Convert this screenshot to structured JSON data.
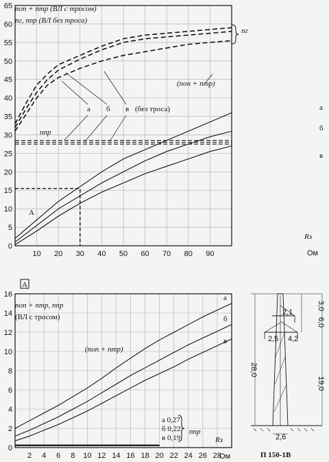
{
  "chart_data": [
    {
      "type": "line",
      "title_lines": [
        "nоп + nтр (ВЛ с тросом)",
        "nг, nпр (ВЛ без троса)"
      ],
      "xlabel": "Rз",
      "x_unit": "Ом",
      "xlim": [
        0,
        100
      ],
      "ylim": [
        0,
        65
      ],
      "x_ticks": [
        10,
        20,
        30,
        40,
        50,
        60,
        70,
        80,
        90
      ],
      "y_ticks": [
        0,
        5,
        10,
        15,
        20,
        25,
        30,
        35,
        40,
        45,
        50,
        55,
        60,
        65
      ],
      "grid": true,
      "annotations": {
        "ng": "nг",
        "sum": "(nоп + nтр)",
        "npr": "nпр",
        "no_cable": "(без троса)",
        "point_A": "A",
        "letters": [
          "а",
          "б",
          "в"
        ]
      },
      "marker_A": {
        "x": 30,
        "y": 15.5
      },
      "series": [
        {
          "name": "а",
          "group": "ng",
          "style": "dashed",
          "x": [
            0,
            5,
            10,
            15,
            20,
            30,
            40,
            50,
            60,
            70,
            80,
            90,
            100
          ],
          "y": [
            33,
            38.5,
            43.5,
            46.5,
            49,
            51.5,
            54,
            56,
            57,
            57.5,
            58,
            58.5,
            59
          ]
        },
        {
          "name": "б",
          "group": "ng",
          "style": "dashed",
          "x": [
            0,
            5,
            10,
            15,
            20,
            30,
            40,
            50,
            60,
            70,
            80,
            90,
            100
          ],
          "y": [
            32,
            37,
            41.5,
            45,
            47.5,
            50.5,
            53,
            55,
            56,
            56.5,
            57,
            57.5,
            58
          ]
        },
        {
          "name": "в",
          "group": "ng",
          "style": "dashed",
          "x": [
            0,
            5,
            10,
            15,
            20,
            30,
            40,
            50,
            60,
            70,
            80,
            90,
            100
          ],
          "y": [
            31,
            35.5,
            40,
            43.5,
            45.5,
            48,
            50,
            51.5,
            52.5,
            53.5,
            54.5,
            55,
            55.5
          ]
        },
        {
          "name": "а",
          "group": "npr",
          "style": "dashed",
          "x": [
            0,
            100
          ],
          "y": [
            28.5,
            28.5
          ]
        },
        {
          "name": "б",
          "group": "npr",
          "style": "dashed",
          "x": [
            0,
            100
          ],
          "y": [
            28,
            28
          ]
        },
        {
          "name": "в",
          "group": "npr",
          "style": "dashed",
          "x": [
            0,
            100
          ],
          "y": [
            27.5,
            27.5
          ]
        },
        {
          "name": "а",
          "group": "sum",
          "style": "solid",
          "x": [
            0,
            10,
            20,
            30,
            40,
            50,
            60,
            70,
            80,
            90,
            100
          ],
          "y": [
            2,
            7,
            12,
            16,
            20,
            23.5,
            26,
            28.5,
            31,
            33.5,
            36
          ]
        },
        {
          "name": "б",
          "group": "sum",
          "style": "solid",
          "x": [
            0,
            10,
            20,
            30,
            40,
            50,
            60,
            70,
            80,
            90,
            100
          ],
          "y": [
            1,
            5.5,
            10,
            13.5,
            17,
            20,
            23,
            25.5,
            27.5,
            29.5,
            31
          ]
        },
        {
          "name": "в",
          "group": "sum",
          "style": "solid",
          "x": [
            0,
            10,
            20,
            30,
            40,
            50,
            60,
            70,
            80,
            90,
            100
          ],
          "y": [
            0.3,
            4,
            8,
            11.5,
            14.5,
            17,
            19.5,
            21.5,
            23.5,
            25.5,
            27
          ]
        }
      ]
    },
    {
      "type": "line",
      "panel_label": "A",
      "title_lines": [
        "nоп + nтр, nпр",
        "(ВЛ с тросом)"
      ],
      "xlabel": "Rз",
      "x_unit": "Ом",
      "xlim": [
        0,
        30
      ],
      "ylim": [
        0,
        16
      ],
      "x_ticks": [
        2,
        4,
        6,
        8,
        10,
        12,
        14,
        16,
        18,
        20,
        22,
        24,
        26,
        28
      ],
      "y_ticks": [
        0,
        2,
        4,
        6,
        8,
        10,
        12,
        14,
        16
      ],
      "grid": true,
      "annotations": {
        "sum": "(nоп + nтр)",
        "npr": "nпр",
        "npr_values": [
          "а 0,27",
          "б 0,22",
          "в 0,19"
        ],
        "letters": [
          "а",
          "б",
          "в"
        ]
      },
      "series": [
        {
          "name": "а",
          "group": "sum",
          "style": "solid",
          "x": [
            0,
            2,
            4,
            6,
            8,
            10,
            12,
            14,
            16,
            18,
            20,
            22,
            24,
            26,
            28,
            30
          ],
          "y": [
            2,
            2.8,
            3.6,
            4.4,
            5.3,
            6.2,
            7.2,
            8.3,
            9.3,
            10.3,
            11.2,
            12,
            12.8,
            13.6,
            14.3,
            15
          ]
        },
        {
          "name": "б",
          "group": "sum",
          "style": "solid",
          "x": [
            0,
            2,
            4,
            6,
            8,
            10,
            12,
            14,
            16,
            18,
            20,
            22,
            24,
            26,
            28,
            30
          ],
          "y": [
            1.2,
            1.8,
            2.5,
            3.2,
            4,
            4.8,
            5.7,
            6.6,
            7.5,
            8.3,
            9.1,
            9.9,
            10.7,
            11.4,
            12.1,
            12.8
          ]
        },
        {
          "name": "в",
          "group": "sum",
          "style": "solid",
          "x": [
            0,
            2,
            4,
            6,
            8,
            10,
            12,
            14,
            16,
            18,
            20,
            22,
            24,
            26,
            28,
            30
          ],
          "y": [
            0.7,
            1.2,
            1.8,
            2.4,
            3.1,
            3.8,
            4.6,
            5.4,
            6.2,
            7,
            7.7,
            8.4,
            9.2,
            9.9,
            10.6,
            11.3
          ]
        },
        {
          "name": "а",
          "group": "npr",
          "style": "solid",
          "x": [
            0,
            20
          ],
          "y": [
            0.27,
            0.27
          ]
        },
        {
          "name": "б",
          "group": "npr",
          "style": "solid",
          "x": [
            0,
            20
          ],
          "y": [
            0.22,
            0.22
          ]
        },
        {
          "name": "в",
          "group": "npr",
          "style": "solid",
          "x": [
            0,
            20
          ],
          "y": [
            0.19,
            0.19
          ]
        }
      ]
    }
  ],
  "tower": {
    "caption": "П 150-1В",
    "dims": [
      "3,0",
      "2,1",
      "6,0",
      "2,5",
      "4,2",
      "28,0",
      "19,0",
      "2,6"
    ]
  }
}
